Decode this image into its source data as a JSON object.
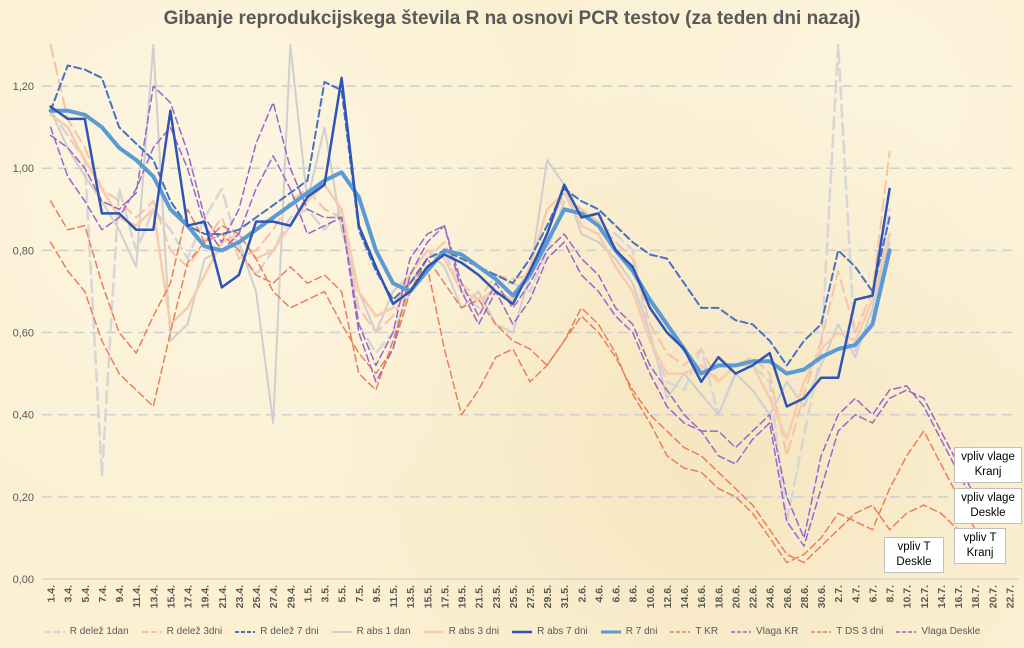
{
  "chart_data": {
    "type": "line",
    "title": "Gibanje reprodukcijskega števila R na osnovi PCR testov (za teden dni nazaj)",
    "ylim": [
      0,
      1.3
    ],
    "yticks": [
      "0,00",
      "0,20",
      "0,40",
      "0,60",
      "0,80",
      "1,00",
      "1,20"
    ],
    "ytick_values": [
      0,
      0.2,
      0.4,
      0.6,
      0.8,
      1.0,
      1.2
    ],
    "grid": true,
    "legend_position": "bottom",
    "x_labels": [
      "1.4.",
      "3.4.",
      "5.4.",
      "7.4.",
      "9.4.",
      "11.4.",
      "13.4.",
      "15.4.",
      "17.4.",
      "19.4.",
      "21.4.",
      "23.4.",
      "25.4.",
      "27.4.",
      "29.4.",
      "1.5.",
      "3.5.",
      "5.5.",
      "7.5.",
      "9.5.",
      "11.5.",
      "13.5.",
      "15.5.",
      "17.5.",
      "19.5.",
      "21.5.",
      "23.5.",
      "25.5.",
      "27.5.",
      "29.5.",
      "31.5.",
      "2.6.",
      "4.6.",
      "6.6.",
      "8.6.",
      "10.6.",
      "12.6.",
      "14.6.",
      "16.6.",
      "18.6.",
      "20.6.",
      "22.6.",
      "24.6.",
      "26.6.",
      "28.6.",
      "30.6.",
      "2.7.",
      "4.7.",
      "6.7.",
      "8.7.",
      "10.7.",
      "12.7.",
      "14.7.",
      "16.7.",
      "18.7.",
      "20.7.",
      "22.7."
    ],
    "series": [
      {
        "name": "R delež 1dan",
        "color": "#d6d6d6",
        "dash": "long",
        "width": 2.5,
        "values": [
          1.14,
          1.08,
          1.02,
          0.25,
          0.95,
          0.8,
          0.9,
          0.85,
          0.78,
          0.88,
          0.95,
          0.8,
          0.74,
          0.8,
          0.88,
          0.9,
          0.85,
          0.9,
          0.62,
          0.55,
          0.6,
          0.7,
          0.75,
          0.8,
          0.7,
          0.66,
          0.72,
          0.72,
          0.7,
          0.8,
          0.92,
          0.9,
          0.86,
          0.84,
          0.8,
          0.58,
          0.48,
          0.46,
          0.56,
          0.4,
          0.5,
          0.52,
          0.48,
          0.14,
          0.35,
          0.55,
          1.3,
          0.55,
          0.65,
          0.9
        ]
      },
      {
        "name": "R delež 3dni",
        "color": "#f6c4a4",
        "dash": "long",
        "width": 2,
        "values": [
          1.3,
          1.12,
          1.05,
          0.95,
          0.92,
          0.88,
          0.92,
          0.8,
          0.76,
          0.82,
          0.88,
          0.78,
          0.8,
          0.85,
          0.92,
          0.95,
          0.9,
          0.88,
          0.66,
          0.6,
          0.64,
          0.72,
          0.78,
          0.82,
          0.72,
          0.68,
          0.74,
          0.73,
          0.74,
          0.84,
          0.94,
          0.9,
          0.87,
          0.82,
          0.78,
          0.62,
          0.55,
          0.52,
          0.56,
          0.48,
          0.52,
          0.54,
          0.5,
          0.3,
          0.45,
          0.58,
          0.75,
          0.6,
          0.7,
          1.04
        ]
      },
      {
        "name": "R delež 7 dni",
        "color": "#4472c4",
        "dash": "dash",
        "width": 2,
        "values": [
          1.14,
          1.25,
          1.24,
          1.22,
          1.1,
          1.06,
          1.02,
          0.92,
          0.86,
          0.84,
          0.84,
          0.85,
          0.88,
          0.91,
          0.94,
          0.97,
          1.21,
          1.19,
          0.85,
          0.75,
          0.68,
          0.72,
          0.78,
          0.8,
          0.78,
          0.76,
          0.74,
          0.72,
          0.78,
          0.86,
          0.95,
          0.92,
          0.9,
          0.86,
          0.82,
          0.79,
          0.78,
          0.72,
          0.66,
          0.66,
          0.63,
          0.62,
          0.58,
          0.52,
          0.58,
          0.62,
          0.8,
          0.76,
          0.7,
          0.88
        ]
      },
      {
        "name": "R abs 1 dan",
        "color": "#cfcfcf",
        "dash": "solid",
        "width": 2,
        "values": [
          1.14,
          1.05,
          0.98,
          0.92,
          0.85,
          0.76,
          1.3,
          0.58,
          0.62,
          0.78,
          0.8,
          0.82,
          0.7,
          0.38,
          1.3,
          0.92,
          1.1,
          0.85,
          0.7,
          0.6,
          0.7,
          0.74,
          0.8,
          0.76,
          0.66,
          0.7,
          0.62,
          0.6,
          0.74,
          1.02,
          0.96,
          0.84,
          0.82,
          0.78,
          0.72,
          0.6,
          0.44,
          0.5,
          0.45,
          0.4,
          0.5,
          0.46,
          0.4,
          0.48,
          0.42,
          0.52,
          0.62,
          0.54,
          0.66,
          0.82
        ]
      },
      {
        "name": "R abs 3 dni",
        "color": "#f8cbad",
        "dash": "solid",
        "width": 2.5,
        "values": [
          1.13,
          1.1,
          1.02,
          0.95,
          0.88,
          0.86,
          0.9,
          0.62,
          0.66,
          0.74,
          0.82,
          0.84,
          0.78,
          0.8,
          0.86,
          0.92,
          0.96,
          0.9,
          0.7,
          0.64,
          0.66,
          0.74,
          0.8,
          0.78,
          0.7,
          0.68,
          0.7,
          0.68,
          0.76,
          0.9,
          0.94,
          0.86,
          0.84,
          0.76,
          0.7,
          0.58,
          0.5,
          0.5,
          0.52,
          0.48,
          0.52,
          0.52,
          0.44,
          0.34,
          0.48,
          0.56,
          0.6,
          0.58,
          0.68,
          0.84
        ]
      },
      {
        "name": "R abs 7 dni",
        "color": "#2f55b4",
        "dash": "solid",
        "width": 2.5,
        "values": [
          1.15,
          1.12,
          1.12,
          0.89,
          0.89,
          0.85,
          0.85,
          1.14,
          0.86,
          0.87,
          0.71,
          0.74,
          0.87,
          0.87,
          0.86,
          0.93,
          0.96,
          1.22,
          0.86,
          0.76,
          0.67,
          0.7,
          0.76,
          0.79,
          0.77,
          0.74,
          0.7,
          0.67,
          0.75,
          0.84,
          0.96,
          0.88,
          0.89,
          0.8,
          0.76,
          0.66,
          0.6,
          0.56,
          0.48,
          0.54,
          0.5,
          0.52,
          0.55,
          0.42,
          0.44,
          0.49,
          0.49,
          0.68,
          0.69,
          0.95
        ]
      },
      {
        "name": "R 7 dni",
        "color": "#5b9bd5",
        "dash": "solid",
        "width": 4,
        "values": [
          1.14,
          1.14,
          1.13,
          1.1,
          1.05,
          1.02,
          0.98,
          0.9,
          0.86,
          0.81,
          0.8,
          0.82,
          0.85,
          0.88,
          0.91,
          0.94,
          0.97,
          0.99,
          0.93,
          0.8,
          0.72,
          0.7,
          0.75,
          0.8,
          0.79,
          0.76,
          0.73,
          0.69,
          0.74,
          0.82,
          0.9,
          0.89,
          0.86,
          0.8,
          0.75,
          0.68,
          0.62,
          0.56,
          0.5,
          0.52,
          0.52,
          0.53,
          0.53,
          0.5,
          0.51,
          0.54,
          0.56,
          0.57,
          0.62,
          0.8
        ]
      },
      {
        "name": "T KR",
        "color": "#e8805a",
        "dash": "dash",
        "width": 1.5,
        "values": [
          0.82,
          0.75,
          0.7,
          0.58,
          0.5,
          0.46,
          0.42,
          0.6,
          0.77,
          0.82,
          0.86,
          0.84,
          0.78,
          0.7,
          0.66,
          0.68,
          0.7,
          0.62,
          0.55,
          0.5,
          0.56,
          0.7,
          0.78,
          0.72,
          0.66,
          0.68,
          0.62,
          0.58,
          0.56,
          0.52,
          0.58,
          0.66,
          0.62,
          0.55,
          0.45,
          0.38,
          0.3,
          0.27,
          0.26,
          0.22,
          0.2,
          0.16,
          0.1,
          0.04,
          0.06,
          0.1,
          0.16,
          0.14,
          0.12,
          0.22,
          0.3,
          0.36,
          0.28,
          0.2,
          0.12
        ]
      },
      {
        "name": "Vlaga KR",
        "color": "#9966cc",
        "dash": "dash",
        "width": 1.5,
        "values": [
          1.1,
          0.98,
          0.92,
          0.85,
          0.88,
          0.95,
          1.05,
          1.1,
          1.0,
          0.86,
          0.8,
          0.84,
          0.95,
          1.03,
          0.95,
          0.84,
          0.86,
          0.88,
          0.6,
          0.48,
          0.56,
          0.74,
          0.82,
          0.86,
          0.7,
          0.62,
          0.7,
          0.62,
          0.68,
          0.78,
          0.82,
          0.74,
          0.7,
          0.64,
          0.6,
          0.5,
          0.42,
          0.38,
          0.36,
          0.3,
          0.28,
          0.34,
          0.38,
          0.14,
          0.08,
          0.22,
          0.36,
          0.4,
          0.38,
          0.44,
          0.46,
          0.44,
          0.36,
          0.28,
          0.2
        ]
      },
      {
        "name": "T DS 3 dni",
        "color": "#e8805a",
        "dash": "dash",
        "width": 1.5,
        "values": [
          0.92,
          0.85,
          0.86,
          0.72,
          0.6,
          0.55,
          0.64,
          0.72,
          0.9,
          0.82,
          0.84,
          0.8,
          0.74,
          0.72,
          0.76,
          0.72,
          0.74,
          0.7,
          0.5,
          0.46,
          0.58,
          0.72,
          0.76,
          0.56,
          0.4,
          0.46,
          0.54,
          0.56,
          0.48,
          0.52,
          0.58,
          0.64,
          0.6,
          0.54,
          0.46,
          0.4,
          0.36,
          0.32,
          0.3,
          0.26,
          0.22,
          0.18,
          0.12,
          0.06,
          0.04,
          0.08,
          0.12,
          0.16,
          0.18,
          0.12,
          0.16,
          0.18,
          0.16,
          0.12,
          0.08
        ]
      },
      {
        "name": "Vlaga Deskle",
        "color": "#9966cc",
        "dash": "dash",
        "width": 1.5,
        "values": [
          1.08,
          1.05,
          1.0,
          0.92,
          0.9,
          0.94,
          1.2,
          1.16,
          1.04,
          0.88,
          0.82,
          0.9,
          1.06,
          1.16,
          1.0,
          0.9,
          0.88,
          0.88,
          0.62,
          0.52,
          0.6,
          0.78,
          0.84,
          0.86,
          0.72,
          0.64,
          0.72,
          0.66,
          0.72,
          0.8,
          0.84,
          0.78,
          0.74,
          0.66,
          0.62,
          0.52,
          0.46,
          0.4,
          0.36,
          0.36,
          0.32,
          0.36,
          0.4,
          0.2,
          0.1,
          0.3,
          0.4,
          0.44,
          0.4,
          0.46,
          0.47,
          0.42,
          0.34,
          0.26,
          0.18
        ]
      }
    ]
  },
  "annotations": [
    {
      "key": "vlaga_kranj",
      "text": "vpliv vlage Kranj"
    },
    {
      "key": "vlaga_deskle",
      "text": "vpliv vlage Deskle"
    },
    {
      "key": "t_kranj",
      "text": "vpliv T Kranj"
    },
    {
      "key": "t_deskle",
      "text": "vpliv T Deskle"
    }
  ],
  "annotation_lines": {
    "vlaga_kranj": [
      "vpliv vlage",
      "Kranj"
    ],
    "vlaga_deskle": [
      "vpliv vlage",
      "Deskle"
    ],
    "t_kranj": [
      "vpliv T",
      "Kranj"
    ],
    "t_deskle": [
      "vpliv T",
      "Deskle"
    ]
  }
}
